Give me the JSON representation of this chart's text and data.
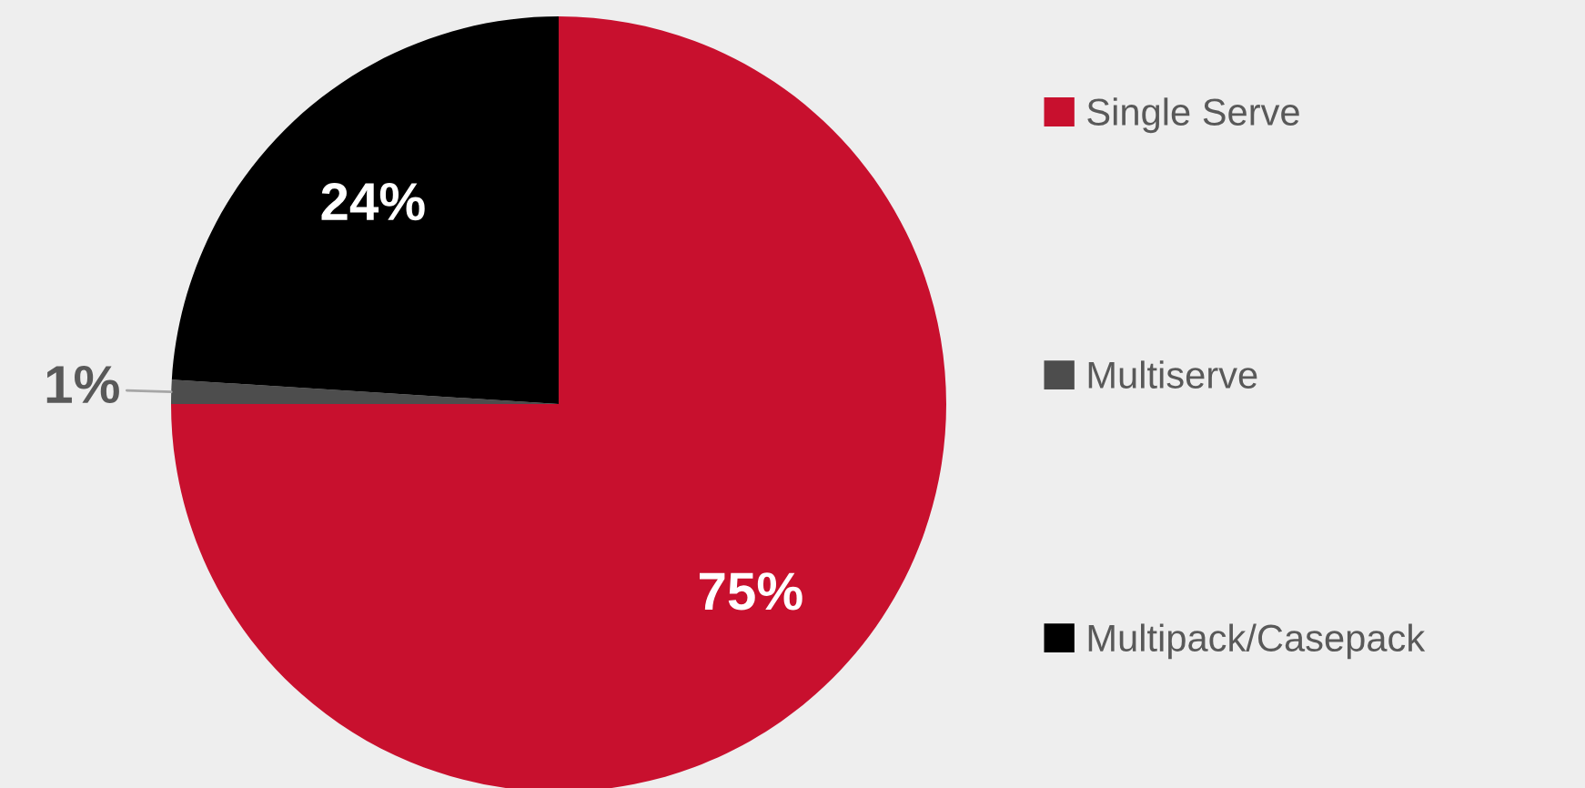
{
  "chart_data": {
    "type": "pie",
    "categories": [
      "Single Serve",
      "Multiserve",
      "Multipack/Casepack"
    ],
    "values": [
      75,
      1,
      24
    ],
    "colors": [
      "#c8102e",
      "#4d4d4d",
      "#000000"
    ],
    "value_labels": [
      "75%",
      "1%",
      "24%"
    ],
    "legend": "right"
  }
}
